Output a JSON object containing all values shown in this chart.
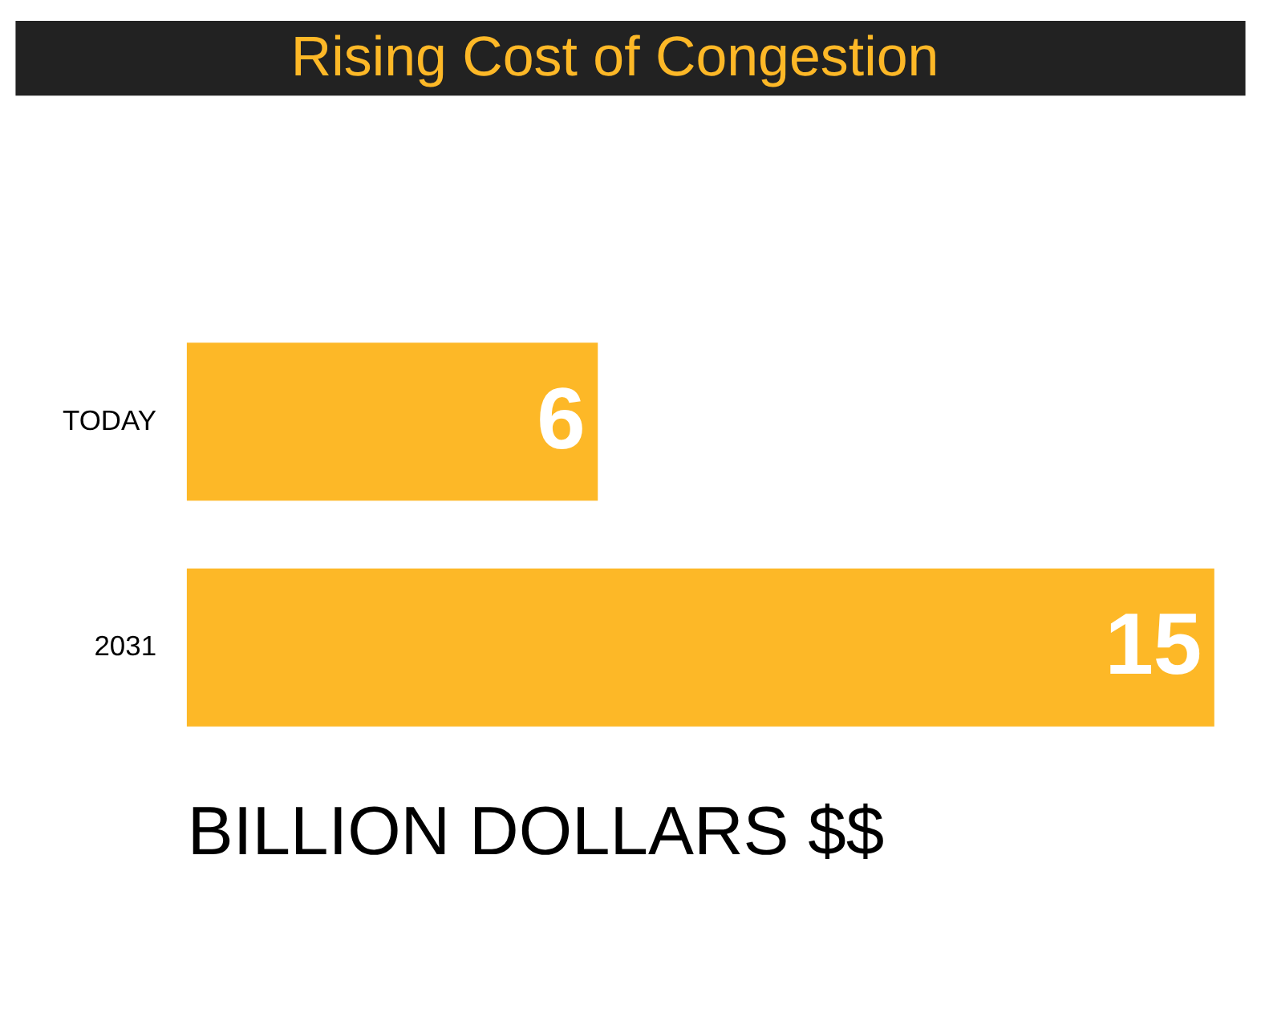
{
  "chart_data": {
    "type": "bar",
    "orientation": "horizontal",
    "title": "Rising Cost of Congestion",
    "xlabel": "BILLION DOLLARS $$",
    "categories": [
      "TODAY",
      "2031"
    ],
    "values": [
      6,
      15
    ],
    "color": "#fdb827",
    "data_labels": true,
    "tick_labels": "y",
    "grid": false
  }
}
